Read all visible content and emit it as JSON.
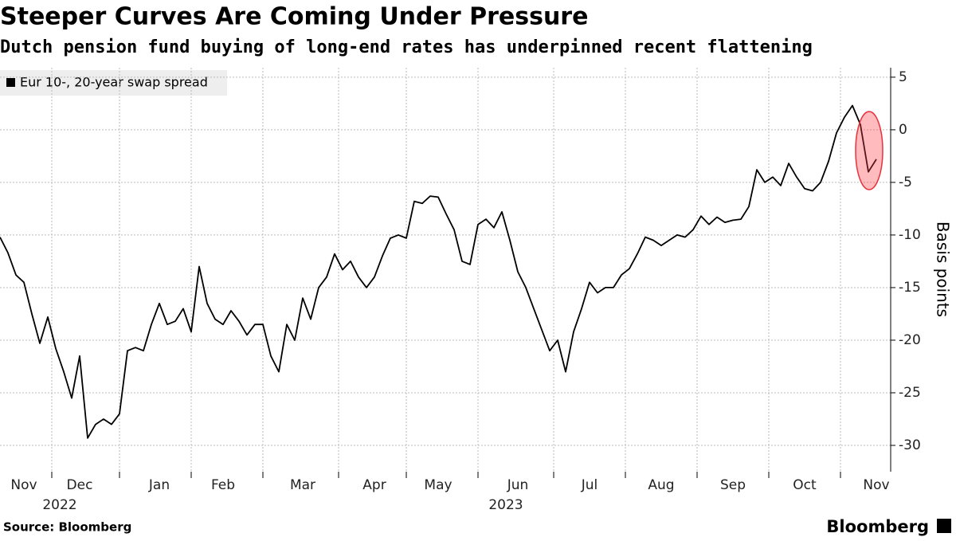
{
  "chart_data": {
    "type": "line",
    "title": "Steeper Curves Are Coming Under Pressure",
    "subtitle": "Dutch pension fund buying of long-end rates has underpinned recent flattening",
    "y_axis_label": "Basis points",
    "source": "Source: Bloomberg",
    "brand": "Bloomberg",
    "year_labels": [
      "2022",
      "2023"
    ],
    "categories": [
      null,
      null,
      null,
      "Nov",
      null,
      null,
      null,
      null,
      null,
      null,
      "Dec",
      null,
      null,
      null,
      null,
      null,
      null,
      null,
      null,
      null,
      "Jan",
      null,
      null,
      null,
      null,
      null,
      null,
      null,
      "Feb",
      null,
      null,
      null,
      null,
      null,
      null,
      null,
      null,
      null,
      "Mar",
      null,
      null,
      null,
      null,
      null,
      null,
      null,
      null,
      "Apr",
      null,
      null,
      null,
      null,
      null,
      null,
      null,
      "May",
      null,
      null,
      null,
      null,
      null,
      null,
      null,
      null,
      null,
      "Jun",
      null,
      null,
      null,
      null,
      null,
      null,
      null,
      null,
      "Jul",
      null,
      null,
      null,
      null,
      null,
      null,
      null,
      null,
      "Aug",
      null,
      null,
      null,
      null,
      null,
      null,
      null,
      null,
      "Sep",
      null,
      null,
      null,
      null,
      null,
      null,
      null,
      null,
      "Oct",
      null,
      null,
      null,
      null,
      null,
      null,
      null,
      null,
      "Nov"
    ],
    "series": [
      {
        "name": "Eur 10-, 20-year swap spread",
        "color": "#000000",
        "values": [
          -10.2,
          -11.7,
          -13.8,
          -14.5,
          -17.5,
          -20.3,
          -17.8,
          -20.8,
          -23,
          -25.5,
          -21.5,
          -29.3,
          -28,
          -27.5,
          -28,
          -27,
          -21,
          -20.7,
          -21,
          -18.5,
          -16.5,
          -18.5,
          -18.2,
          -17,
          -19.2,
          -13,
          -16.5,
          -18,
          -18.5,
          -17.2,
          -18.2,
          -19.5,
          -18.5,
          -18.5,
          -21.5,
          -23,
          -18.5,
          -20,
          -16,
          -18,
          -15,
          -14,
          -11.8,
          -13.3,
          -12.5,
          -14,
          -15,
          -14,
          -12,
          -10.3,
          -10,
          -10.3,
          -6.8,
          -7,
          -6.3,
          -6.4,
          -8,
          -9.5,
          -12.5,
          -12.8,
          -9,
          -8.5,
          -9.3,
          -7.8,
          -10.5,
          -13.5,
          -15,
          -17,
          -19,
          -21,
          -20,
          -23,
          -19.2,
          -17,
          -14.5,
          -15.5,
          -15,
          -15,
          -13.8,
          -13.2,
          -11.8,
          -10.2,
          -10.5,
          -11,
          -10.5,
          -10,
          -10.2,
          -9.5,
          -8.2,
          -9,
          -8.3,
          -8.8,
          -8.6,
          -8.5,
          -7.3,
          -3.8,
          -5,
          -4.5,
          -5.3,
          -3.2,
          -4.5,
          -5.6,
          -5.8,
          -5,
          -3,
          -0.3,
          1.2,
          2.3,
          0.5,
          -4,
          -2.8
        ]
      }
    ],
    "ylim": [
      -32.5,
      5.9
    ],
    "yticks": [
      5,
      0,
      -5,
      -10,
      -15,
      -20,
      -25,
      -30
    ],
    "grid": true
  }
}
